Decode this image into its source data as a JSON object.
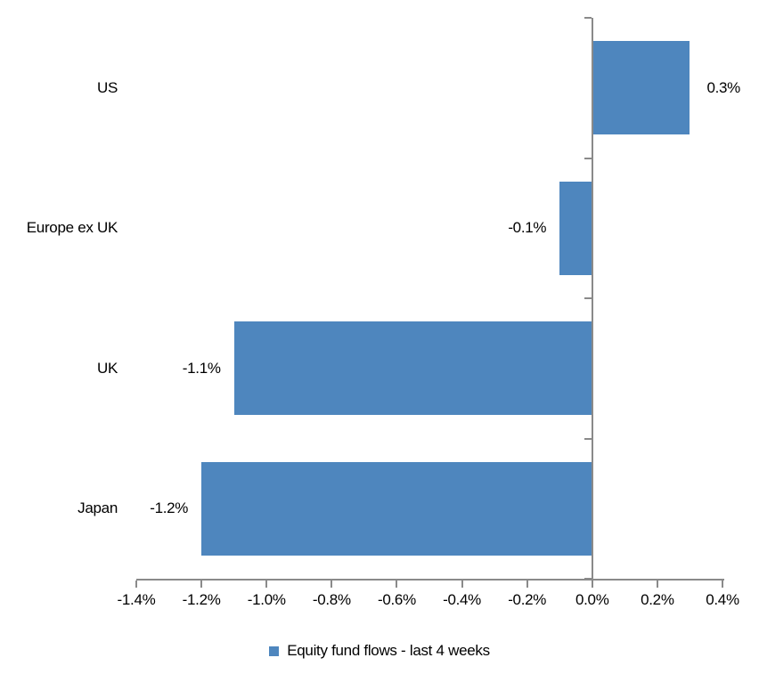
{
  "chart_data": {
    "type": "bar",
    "orientation": "horizontal",
    "title": "",
    "categories": [
      "US",
      "Europe ex UK",
      "UK",
      "Japan"
    ],
    "values": [
      0.3,
      -0.1,
      -1.1,
      -1.2
    ],
    "value_labels": [
      "0.3%",
      "-0.1%",
      "-1.1%",
      "-1.2%"
    ],
    "series_name": "Equity fund flows - last 4 weeks",
    "x_axis": {
      "min": -1.4,
      "max": 0.4,
      "tick_step": 0.2,
      "tick_labels": [
        "-1.4%",
        "-1.2%",
        "-1.0%",
        "-0.8%",
        "-0.6%",
        "-0.4%",
        "-0.2%",
        "0.0%",
        "0.2%",
        "0.4%"
      ]
    },
    "grid": false,
    "legend_position": "bottom",
    "colors": {
      "bar": "#4E86BE",
      "axis": "#8A8A8A",
      "text": "#000000",
      "background": "#FFFFFF"
    }
  },
  "legend": {
    "label": "Equity fund flows - last 4 weeks",
    "marker_color": "#4E86BE"
  }
}
